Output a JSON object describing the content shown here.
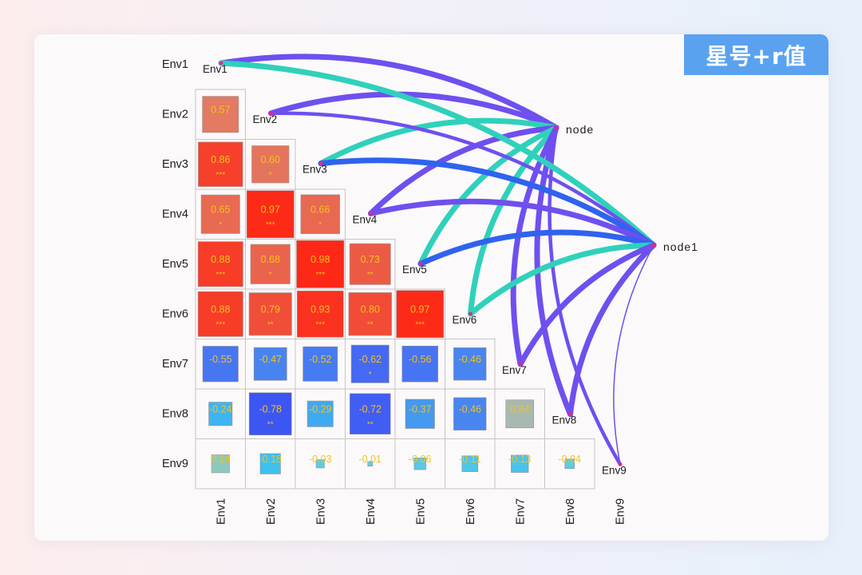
{
  "badge": "星号+r值",
  "chart_data": {
    "type": "heatmap",
    "variables": [
      "Env1",
      "Env2",
      "Env3",
      "Env4",
      "Env5",
      "Env6",
      "Env7",
      "Env8",
      "Env9"
    ],
    "nodes": [
      "node",
      "node1"
    ],
    "cells": [
      {
        "row": "Env2",
        "col": "Env1",
        "r": "0.57",
        "stars": ""
      },
      {
        "row": "Env3",
        "col": "Env1",
        "r": "0.86",
        "stars": "***"
      },
      {
        "row": "Env3",
        "col": "Env2",
        "r": "0.60",
        "stars": "*"
      },
      {
        "row": "Env4",
        "col": "Env1",
        "r": "0.65",
        "stars": "*"
      },
      {
        "row": "Env4",
        "col": "Env2",
        "r": "0.97",
        "stars": "***"
      },
      {
        "row": "Env4",
        "col": "Env3",
        "r": "0.66",
        "stars": "*"
      },
      {
        "row": "Env5",
        "col": "Env1",
        "r": "0.88",
        "stars": "***"
      },
      {
        "row": "Env5",
        "col": "Env2",
        "r": "0.68",
        "stars": "*"
      },
      {
        "row": "Env5",
        "col": "Env3",
        "r": "0.98",
        "stars": "***"
      },
      {
        "row": "Env5",
        "col": "Env4",
        "r": "0.73",
        "stars": "**"
      },
      {
        "row": "Env6",
        "col": "Env1",
        "r": "0.88",
        "stars": "***"
      },
      {
        "row": "Env6",
        "col": "Env2",
        "r": "0.79",
        "stars": "**"
      },
      {
        "row": "Env6",
        "col": "Env3",
        "r": "0.93",
        "stars": "***"
      },
      {
        "row": "Env6",
        "col": "Env4",
        "r": "0.80",
        "stars": "**"
      },
      {
        "row": "Env6",
        "col": "Env5",
        "r": "0.97",
        "stars": "***"
      },
      {
        "row": "Env7",
        "col": "Env1",
        "r": "-0.55",
        "stars": ""
      },
      {
        "row": "Env7",
        "col": "Env2",
        "r": "-0.47",
        "stars": ""
      },
      {
        "row": "Env7",
        "col": "Env3",
        "r": "-0.52",
        "stars": ""
      },
      {
        "row": "Env7",
        "col": "Env4",
        "r": "-0.62",
        "stars": "*"
      },
      {
        "row": "Env7",
        "col": "Env5",
        "r": "-0.56",
        "stars": ""
      },
      {
        "row": "Env7",
        "col": "Env6",
        "r": "-0.46",
        "stars": ""
      },
      {
        "row": "Env8",
        "col": "Env1",
        "r": "-0.24",
        "stars": ""
      },
      {
        "row": "Env8",
        "col": "Env2",
        "r": "-0.78",
        "stars": "**"
      },
      {
        "row": "Env8",
        "col": "Env3",
        "r": "-0.29",
        "stars": ""
      },
      {
        "row": "Env8",
        "col": "Env4",
        "r": "-0.72",
        "stars": "**"
      },
      {
        "row": "Env8",
        "col": "Env5",
        "r": "-0.37",
        "stars": ""
      },
      {
        "row": "Env8",
        "col": "Env6",
        "r": "-0.46",
        "stars": ""
      },
      {
        "row": "Env8",
        "col": "Env7",
        "r": "0.34",
        "stars": ""
      },
      {
        "row": "Env9",
        "col": "Env1",
        "r": "0.14",
        "stars": ""
      },
      {
        "row": "Env9",
        "col": "Env2",
        "r": "-0.18",
        "stars": ""
      },
      {
        "row": "Env9",
        "col": "Env3",
        "r": "-0.03",
        "stars": ""
      },
      {
        "row": "Env9",
        "col": "Env4",
        "r": "-0.01",
        "stars": ""
      },
      {
        "row": "Env9",
        "col": "Env5",
        "r": "-0.06",
        "stars": ""
      },
      {
        "row": "Env9",
        "col": "Env6",
        "r": "-0.11",
        "stars": ""
      },
      {
        "row": "Env9",
        "col": "Env7",
        "r": "-0.13",
        "stars": ""
      },
      {
        "row": "Env9",
        "col": "Env8",
        "r": "-0.04",
        "stars": ""
      }
    ],
    "links": [
      {
        "from": "node",
        "to": "Env1",
        "type": "purple-thick"
      },
      {
        "from": "node",
        "to": "Env2",
        "type": "purple-thick"
      },
      {
        "from": "node",
        "to": "Env3",
        "type": "teal-thick"
      },
      {
        "from": "node",
        "to": "Env4",
        "type": "purple-thick"
      },
      {
        "from": "node",
        "to": "Env5",
        "type": "teal-thick"
      },
      {
        "from": "node",
        "to": "Env6",
        "type": "teal-thick"
      },
      {
        "from": "node",
        "to": "Env7",
        "type": "purple-thick"
      },
      {
        "from": "node",
        "to": "Env8",
        "type": "purple-thick"
      },
      {
        "from": "node",
        "to": "Env9",
        "type": "purple-medium"
      },
      {
        "from": "node1",
        "to": "Env1",
        "type": "teal-thick"
      },
      {
        "from": "node1",
        "to": "Env2",
        "type": "purple-medium"
      },
      {
        "from": "node1",
        "to": "Env3",
        "type": "blue-thick"
      },
      {
        "from": "node1",
        "to": "Env4",
        "type": "purple-thick"
      },
      {
        "from": "node1",
        "to": "Env5",
        "type": "blue-thick"
      },
      {
        "from": "node1",
        "to": "Env6",
        "type": "teal-thick"
      },
      {
        "from": "node1",
        "to": "Env7",
        "type": "purple-thick"
      },
      {
        "from": "node1",
        "to": "Env8",
        "type": "purple-thick"
      },
      {
        "from": "node1",
        "to": "Env9",
        "type": "purple-thin"
      }
    ],
    "link_colors": {
      "purple": "#6f4fef",
      "teal": "#2fd1bb",
      "blue": "#2f63ee"
    },
    "positive_color_max": "#ff2412",
    "negative_color_max": "#2a3ff0",
    "text_color": "#f3c21c"
  }
}
